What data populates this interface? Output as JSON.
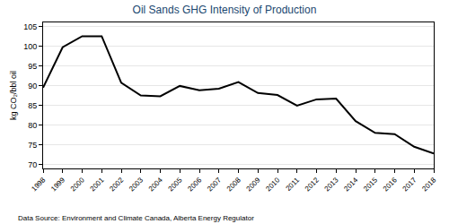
{
  "chart_data": {
    "type": "line",
    "title": "Oil Sands GHG Intensity of Production",
    "y_label": "kg CO₂/bbl oil",
    "annotations": [
      "Data Source: Environment and Climate Canada, Alberta Energy Regulator"
    ],
    "x": [
      1998,
      1999,
      2000,
      2001,
      2002,
      2003,
      2004,
      2005,
      2006,
      2007,
      2008,
      2009,
      2010,
      2011,
      2012,
      2013,
      2014,
      2015,
      2016,
      2017,
      2018
    ],
    "values": [
      89.5,
      99.7,
      102.5,
      102.5,
      90.7,
      87.5,
      87.3,
      89.9,
      88.8,
      89.2,
      90.9,
      88.1,
      87.6,
      84.9,
      86.5,
      86.7,
      81.0,
      78.0,
      77.7,
      74.5,
      72.8
    ],
    "color": "#000000",
    "xlim": [
      1998,
      2018
    ],
    "xticks": [
      1998,
      1999,
      2000,
      2001,
      2002,
      2003,
      2004,
      2005,
      2006,
      2007,
      2008,
      2009,
      2010,
      2011,
      2012,
      2013,
      2014,
      2015,
      2016,
      2017,
      2018
    ],
    "ylim": [
      69,
      106
    ],
    "yticks": [
      70,
      75,
      80,
      85,
      90,
      95,
      100,
      105
    ],
    "grid": true
  }
}
